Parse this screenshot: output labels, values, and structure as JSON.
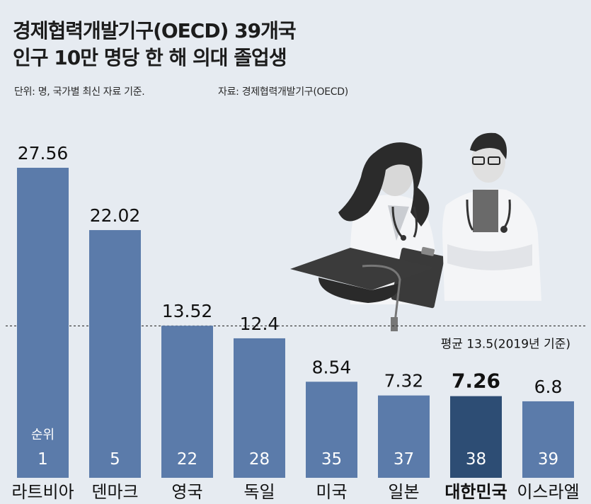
{
  "header": {
    "title_line1": "경제협력개발기구(OECD) 39개국",
    "title_line2": "인구 10만 명당 한 해 의대 졸업생",
    "unit_note": "단위: 명, 국가별 최신 자료 기준.",
    "source_note": "자료: 경제협력개발기구(OECD)"
  },
  "chart_data": {
    "type": "bar",
    "title": "경제협력개발기구(OECD) 39개국 인구 10만 명당 한 해 의대 졸업생",
    "categories": [
      "라트비아",
      "덴마크",
      "영국",
      "독일",
      "미국",
      "일본",
      "대한민국",
      "이스라엘"
    ],
    "values": [
      27.56,
      22.02,
      13.52,
      12.4,
      8.54,
      7.32,
      7.26,
      6.8
    ],
    "value_labels": [
      "27.56",
      "22.02",
      "13.52",
      "12.4",
      "8.54",
      "7.32",
      "7.26",
      "6.8"
    ],
    "ranks": [
      "1",
      "5",
      "22",
      "28",
      "35",
      "37",
      "38",
      "39"
    ],
    "rank_header": "순위",
    "highlight": "대한민국",
    "average": {
      "value": 13.5,
      "label": "평균 13.5(2019년 기준)"
    },
    "colors": {
      "bar": "#5b7baa",
      "highlight_bar": "#2d4d74",
      "background": "#e6ebf1"
    }
  }
}
